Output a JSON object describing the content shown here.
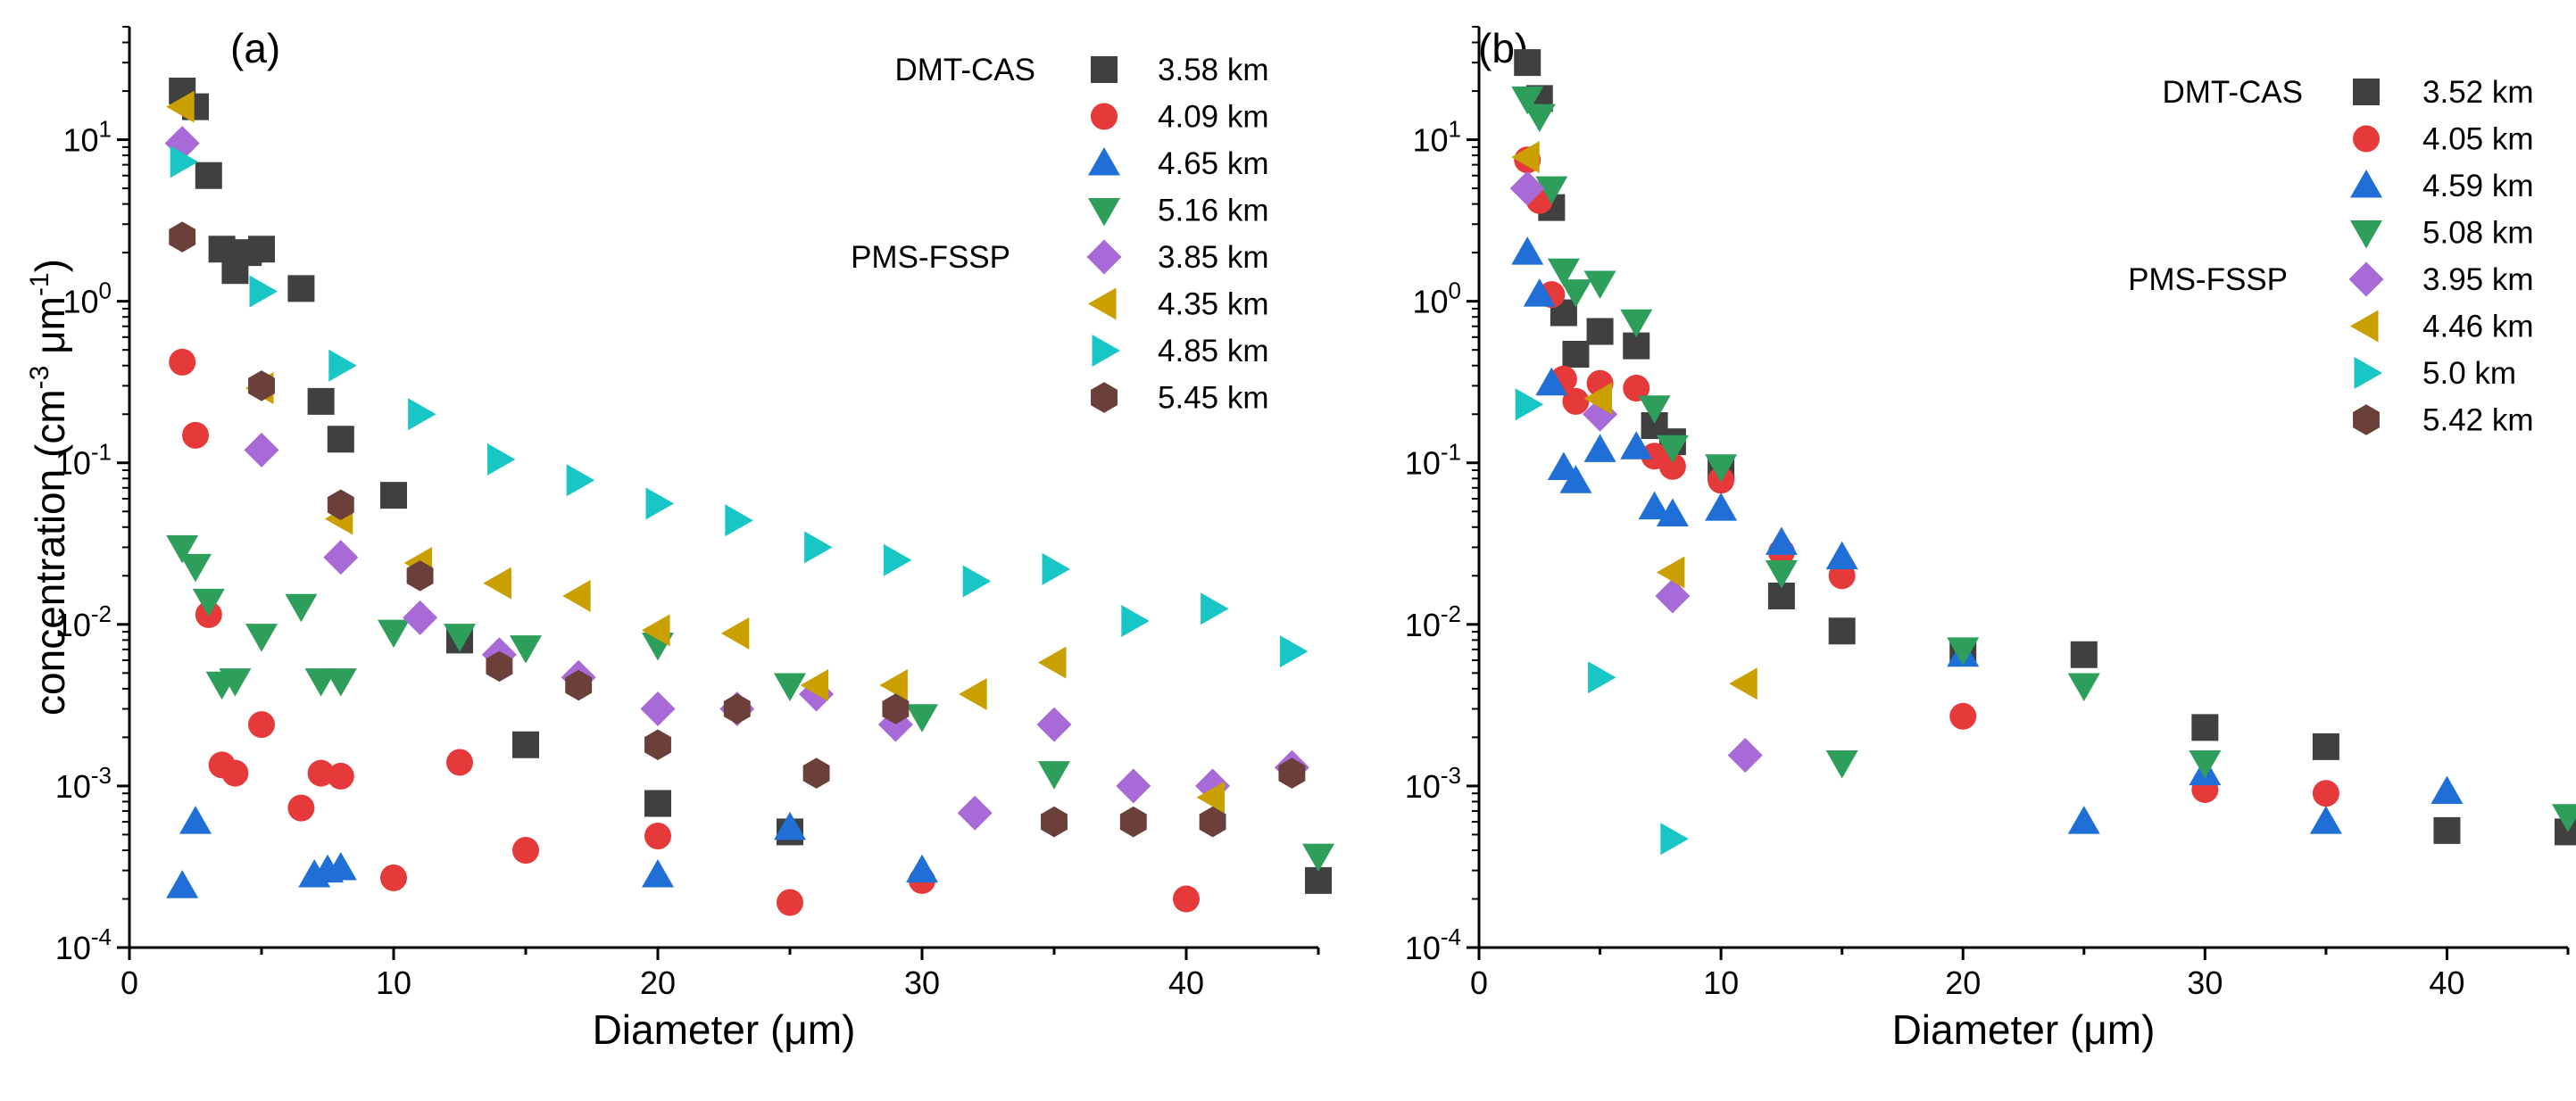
{
  "chart_data": [
    {
      "type": "scatter",
      "panel_label": "(a)",
      "xlabel": "Diameter (μm)",
      "ylabel": "concentration (cm^-3 μm^-1)",
      "ylabel_parts": [
        "concentration (cm",
        "-3",
        " μm",
        "-1",
        ")"
      ],
      "xlim": [
        0,
        45
      ],
      "ylim": [
        0.0001,
        50
      ],
      "yscale": "log",
      "xticks": [
        0,
        10,
        20,
        30,
        40
      ],
      "ytick_exponents": [
        -4,
        -3,
        -2,
        -1,
        0,
        1
      ],
      "legend_groups": [
        {
          "label": "DMT-CAS",
          "series_range": [
            0,
            4
          ]
        },
        {
          "label": "PMS-FSSP",
          "series_range": [
            4,
            8
          ]
        }
      ],
      "series": [
        {
          "name": "3.58 km",
          "instrument": "DMT-CAS",
          "marker": "square",
          "color": "#404040",
          "points": [
            [
              2,
              20
            ],
            [
              2.5,
              16
            ],
            [
              3,
              6
            ],
            [
              3.5,
              2.1
            ],
            [
              4,
              1.55
            ],
            [
              4.5,
              2
            ],
            [
              5,
              2.1
            ],
            [
              6.5,
              1.2
            ],
            [
              7.25,
              0.24
            ],
            [
              8,
              0.14
            ],
            [
              10,
              0.063
            ],
            [
              12.5,
              0.008
            ],
            [
              15,
              0.0018
            ],
            [
              20,
              0.00078
            ],
            [
              25,
              0.00052
            ],
            [
              45,
              0.00026
            ]
          ]
        },
        {
          "name": "4.09 km",
          "instrument": "DMT-CAS",
          "marker": "circle",
          "color": "#e6393a",
          "points": [
            [
              2,
              0.42
            ],
            [
              2.5,
              0.148
            ],
            [
              3,
              0.0115
            ],
            [
              3.5,
              0.00135
            ],
            [
              4,
              0.0012
            ],
            [
              5,
              0.0024
            ],
            [
              6.5,
              0.00073
            ],
            [
              7.25,
              0.0012
            ],
            [
              8,
              0.00115
            ],
            [
              10,
              0.00027
            ],
            [
              12.5,
              0.0014
            ],
            [
              15,
              0.0004
            ],
            [
              20,
              0.00049
            ],
            [
              25,
              0.00019
            ],
            [
              30,
              0.00026
            ],
            [
              40,
              0.0002
            ]
          ]
        },
        {
          "name": "4.65 km",
          "instrument": "DMT-CAS",
          "marker": "triangle-up",
          "color": "#1f6fd6",
          "points": [
            [
              2,
              0.00024
            ],
            [
              2.5,
              0.0006
            ],
            [
              7,
              0.00028
            ],
            [
              7.5,
              0.0003
            ],
            [
              8,
              0.00031
            ],
            [
              20,
              0.00028
            ],
            [
              25,
              0.00055
            ],
            [
              30,
              0.0003
            ]
          ]
        },
        {
          "name": "5.16 km",
          "instrument": "DMT-CAS",
          "marker": "triangle-down",
          "color": "#2e9e5b",
          "points": [
            [
              2,
              0.03
            ],
            [
              2.5,
              0.023
            ],
            [
              3,
              0.014
            ],
            [
              3.5,
              0.0043
            ],
            [
              4,
              0.0045
            ],
            [
              5,
              0.0085
            ],
            [
              6.5,
              0.013
            ],
            [
              7.25,
              0.0045
            ],
            [
              8,
              0.0045
            ],
            [
              10,
              0.009
            ],
            [
              12.5,
              0.0085
            ],
            [
              15,
              0.0072
            ],
            [
              20,
              0.0075
            ],
            [
              25,
              0.0042
            ],
            [
              30,
              0.0027
            ],
            [
              35,
              0.0012
            ],
            [
              45,
              0.00037
            ]
          ]
        },
        {
          "name": "3.85 km",
          "instrument": "PMS-FSSP",
          "marker": "diamond",
          "color": "#a86ad6",
          "points": [
            [
              2,
              9.5
            ],
            [
              5,
              0.12
            ],
            [
              8,
              0.026
            ],
            [
              11,
              0.011
            ],
            [
              14,
              0.0065
            ],
            [
              17,
              0.0047
            ],
            [
              20,
              0.003
            ],
            [
              23,
              0.003
            ],
            [
              26,
              0.0037
            ],
            [
              29,
              0.0024
            ],
            [
              32,
              0.00068
            ],
            [
              35,
              0.0024
            ],
            [
              38,
              0.001
            ],
            [
              41,
              0.001
            ],
            [
              44,
              0.0013
            ]
          ]
        },
        {
          "name": "4.35 km",
          "instrument": "PMS-FSSP",
          "marker": "triangle-left",
          "color": "#c9a000",
          "points": [
            [
              2,
              16
            ],
            [
              5,
              0.29
            ],
            [
              8,
              0.045
            ],
            [
              11,
              0.024
            ],
            [
              14,
              0.018
            ],
            [
              17,
              0.015
            ],
            [
              20,
              0.0092
            ],
            [
              23,
              0.0088
            ],
            [
              26,
              0.0042
            ],
            [
              29,
              0.0042
            ],
            [
              32,
              0.0037
            ],
            [
              35,
              0.0058
            ],
            [
              41,
              0.00085
            ]
          ]
        },
        {
          "name": "4.85 km",
          "instrument": "PMS-FSSP",
          "marker": "triangle-right",
          "color": "#19c6c6",
          "points": [
            [
              2,
              7.3
            ],
            [
              5,
              1.15
            ],
            [
              8,
              0.4
            ],
            [
              11,
              0.2
            ],
            [
              14,
              0.105
            ],
            [
              17,
              0.078
            ],
            [
              20,
              0.056
            ],
            [
              23,
              0.044
            ],
            [
              26,
              0.03
            ],
            [
              29,
              0.025
            ],
            [
              32,
              0.0185
            ],
            [
              35,
              0.022
            ],
            [
              38,
              0.0105
            ],
            [
              41,
              0.0125
            ],
            [
              44,
              0.0068
            ]
          ]
        },
        {
          "name": "5.45 km",
          "instrument": "PMS-FSSP",
          "marker": "hexagon",
          "color": "#6b3f3a",
          "points": [
            [
              2,
              2.5
            ],
            [
              5,
              0.3
            ],
            [
              8,
              0.055
            ],
            [
              11,
              0.02
            ],
            [
              14,
              0.0055
            ],
            [
              17,
              0.0042
            ],
            [
              20,
              0.0018
            ],
            [
              23,
              0.003
            ],
            [
              26,
              0.0012
            ],
            [
              29,
              0.003
            ],
            [
              35,
              0.0006
            ],
            [
              38,
              0.0006
            ],
            [
              41,
              0.0006
            ],
            [
              44,
              0.0012
            ]
          ]
        }
      ]
    },
    {
      "type": "scatter",
      "panel_label": "(b)",
      "xlabel": "Diameter (μm)",
      "ylabel": "",
      "xlim": [
        0,
        45
      ],
      "ylim": [
        0.0001,
        50
      ],
      "yscale": "log",
      "xticks": [
        0,
        10,
        20,
        30,
        40
      ],
      "ytick_exponents": [
        -4,
        -3,
        -2,
        -1,
        0,
        1
      ],
      "legend_groups": [
        {
          "label": "DMT-CAS",
          "series_range": [
            0,
            4
          ]
        },
        {
          "label": "PMS-FSSP",
          "series_range": [
            4,
            8
          ]
        }
      ],
      "series": [
        {
          "name": "3.52 km",
          "instrument": "DMT-CAS",
          "marker": "square",
          "color": "#404040",
          "points": [
            [
              2,
              30
            ],
            [
              2.5,
              18
            ],
            [
              3,
              3.8
            ],
            [
              3.5,
              0.85
            ],
            [
              4,
              0.47
            ],
            [
              5,
              0.65
            ],
            [
              6.5,
              0.53
            ],
            [
              7.25,
              0.17
            ],
            [
              8,
              0.135
            ],
            [
              10,
              0.092
            ],
            [
              12.5,
              0.015
            ],
            [
              15,
              0.0091
            ],
            [
              20,
              0.0068
            ],
            [
              25,
              0.0065
            ],
            [
              30,
              0.0023
            ],
            [
              35,
              0.00175
            ],
            [
              40,
              0.00053
            ],
            [
              45,
              0.00052
            ]
          ]
        },
        {
          "name": "4.05 km",
          "instrument": "DMT-CAS",
          "marker": "circle",
          "color": "#e6393a",
          "points": [
            [
              2,
              7.5
            ],
            [
              2.5,
              4.2
            ],
            [
              3,
              1.1
            ],
            [
              3.5,
              0.33
            ],
            [
              4,
              0.24
            ],
            [
              5,
              0.31
            ],
            [
              6.5,
              0.29
            ],
            [
              7.25,
              0.11
            ],
            [
              8,
              0.095
            ],
            [
              10,
              0.078
            ],
            [
              12.5,
              0.028
            ],
            [
              15,
              0.02
            ],
            [
              20,
              0.0027
            ],
            [
              30,
              0.00095
            ],
            [
              35,
              0.0009
            ]
          ]
        },
        {
          "name": "4.59 km",
          "instrument": "DMT-CAS",
          "marker": "triangle-up",
          "color": "#1f6fd6",
          "points": [
            [
              2,
              2
            ],
            [
              2.5,
              1.1
            ],
            [
              3,
              0.31
            ],
            [
              3.5,
              0.093
            ],
            [
              4,
              0.077
            ],
            [
              5,
              0.12
            ],
            [
              6.5,
              0.125
            ],
            [
              7.25,
              0.053
            ],
            [
              8,
              0.048
            ],
            [
              10,
              0.052
            ],
            [
              12.5,
              0.032
            ],
            [
              15,
              0.026
            ],
            [
              20,
              0.0065
            ],
            [
              25,
              0.0006
            ],
            [
              30,
              0.0012
            ],
            [
              35,
              0.0006
            ],
            [
              40,
              0.00092
            ]
          ]
        },
        {
          "name": "5.08 km",
          "instrument": "DMT-CAS",
          "marker": "triangle-down",
          "color": "#2e9e5b",
          "points": [
            [
              2,
              18
            ],
            [
              2.5,
              14
            ],
            [
              3,
              5
            ],
            [
              3.5,
              1.55
            ],
            [
              4,
              1.15
            ],
            [
              5,
              1.3
            ],
            [
              6.5,
              0.75
            ],
            [
              7.25,
              0.22
            ],
            [
              8,
              0.125
            ],
            [
              10,
              0.095
            ],
            [
              12.5,
              0.021
            ],
            [
              15,
              0.0014
            ],
            [
              20,
              0.007
            ],
            [
              25,
              0.0042
            ],
            [
              30,
              0.0014
            ],
            [
              45,
              0.00065
            ]
          ]
        },
        {
          "name": "3.95 km",
          "instrument": "PMS-FSSP",
          "marker": "diamond",
          "color": "#a86ad6",
          "points": [
            [
              2,
              5
            ],
            [
              5,
              0.2
            ],
            [
              8,
              0.015
            ],
            [
              11,
              0.00155
            ]
          ]
        },
        {
          "name": "4.46 km",
          "instrument": "PMS-FSSP",
          "marker": "triangle-left",
          "color": "#c9a000",
          "points": [
            [
              2,
              7.8
            ],
            [
              5,
              0.25
            ],
            [
              8,
              0.021
            ],
            [
              11,
              0.0043
            ]
          ]
        },
        {
          "name": "5.0 km",
          "instrument": "PMS-FSSP",
          "marker": "triangle-right",
          "color": "#19c6c6",
          "points": [
            [
              2,
              0.23
            ],
            [
              5,
              0.0047
            ],
            [
              8,
              0.00047
            ]
          ]
        },
        {
          "name": "5.42 km",
          "instrument": "PMS-FSSP",
          "marker": "hexagon",
          "color": "#6b3f3a",
          "points": []
        }
      ]
    }
  ]
}
